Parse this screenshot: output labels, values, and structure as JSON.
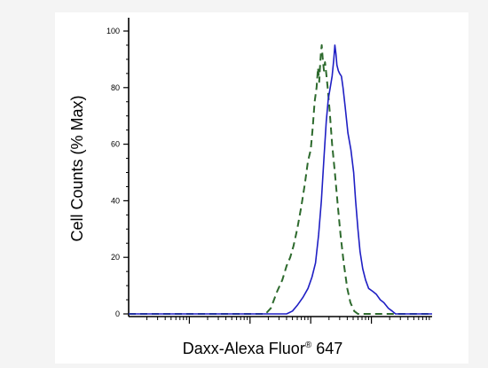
{
  "chart_data": {
    "type": "line",
    "title": "",
    "xlabel": "Daxx-Alexa Fluor",
    "xlabel_sup": "®",
    "xlabel_suffix": " 647",
    "ylabel": "Cell Counts (% Max)",
    "xscale": "log",
    "xlim": [
      1,
      100000
    ],
    "ylim": [
      0,
      100
    ],
    "yticks": [
      0,
      20,
      40,
      60,
      80,
      100
    ],
    "xticks": [
      10,
      100,
      1000,
      10000
    ],
    "grid": false,
    "series": [
      {
        "color": "#2d6a2d",
        "dash": "dashed",
        "points": [
          [
            1,
            0
          ],
          [
            180,
            0
          ],
          [
            220,
            2
          ],
          [
            280,
            8
          ],
          [
            340,
            12
          ],
          [
            400,
            17
          ],
          [
            460,
            20
          ],
          [
            520,
            24
          ],
          [
            600,
            30
          ],
          [
            700,
            38
          ],
          [
            800,
            46
          ],
          [
            900,
            54
          ],
          [
            1000,
            58
          ],
          [
            1080,
            66
          ],
          [
            1160,
            75
          ],
          [
            1250,
            80
          ],
          [
            1320,
            87
          ],
          [
            1380,
            82
          ],
          [
            1420,
            87
          ],
          [
            1470,
            92
          ],
          [
            1520,
            95
          ],
          [
            1580,
            90
          ],
          [
            1650,
            86
          ],
          [
            1720,
            89
          ],
          [
            1800,
            85
          ],
          [
            1900,
            80
          ],
          [
            2050,
            72
          ],
          [
            2250,
            60
          ],
          [
            2500,
            50
          ],
          [
            2800,
            38
          ],
          [
            3100,
            28
          ],
          [
            3500,
            18
          ],
          [
            4000,
            9
          ],
          [
            4500,
            4
          ],
          [
            5200,
            1
          ],
          [
            6000,
            0
          ],
          [
            100000,
            0
          ]
        ]
      },
      {
        "color": "#1f1fc4",
        "dash": "solid",
        "points": [
          [
            1,
            0
          ],
          [
            400,
            0
          ],
          [
            500,
            1
          ],
          [
            600,
            3
          ],
          [
            750,
            6
          ],
          [
            900,
            9
          ],
          [
            1050,
            13
          ],
          [
            1200,
            18
          ],
          [
            1350,
            28
          ],
          [
            1500,
            40
          ],
          [
            1650,
            55
          ],
          [
            1800,
            68
          ],
          [
            1950,
            76
          ],
          [
            2100,
            80
          ],
          [
            2250,
            84
          ],
          [
            2400,
            90
          ],
          [
            2500,
            95
          ],
          [
            2600,
            92
          ],
          [
            2700,
            88
          ],
          [
            2850,
            86
          ],
          [
            3000,
            85
          ],
          [
            3200,
            84
          ],
          [
            3400,
            80
          ],
          [
            3700,
            73
          ],
          [
            4100,
            64
          ],
          [
            4600,
            58
          ],
          [
            5100,
            50
          ],
          [
            5500,
            40
          ],
          [
            6000,
            30
          ],
          [
            6500,
            22
          ],
          [
            7200,
            16
          ],
          [
            8000,
            12
          ],
          [
            9000,
            9
          ],
          [
            10500,
            8
          ],
          [
            12000,
            7
          ],
          [
            14000,
            5
          ],
          [
            16000,
            4
          ],
          [
            19000,
            2
          ],
          [
            22000,
            1
          ],
          [
            25000,
            0
          ],
          [
            100000,
            0
          ]
        ]
      }
    ]
  }
}
